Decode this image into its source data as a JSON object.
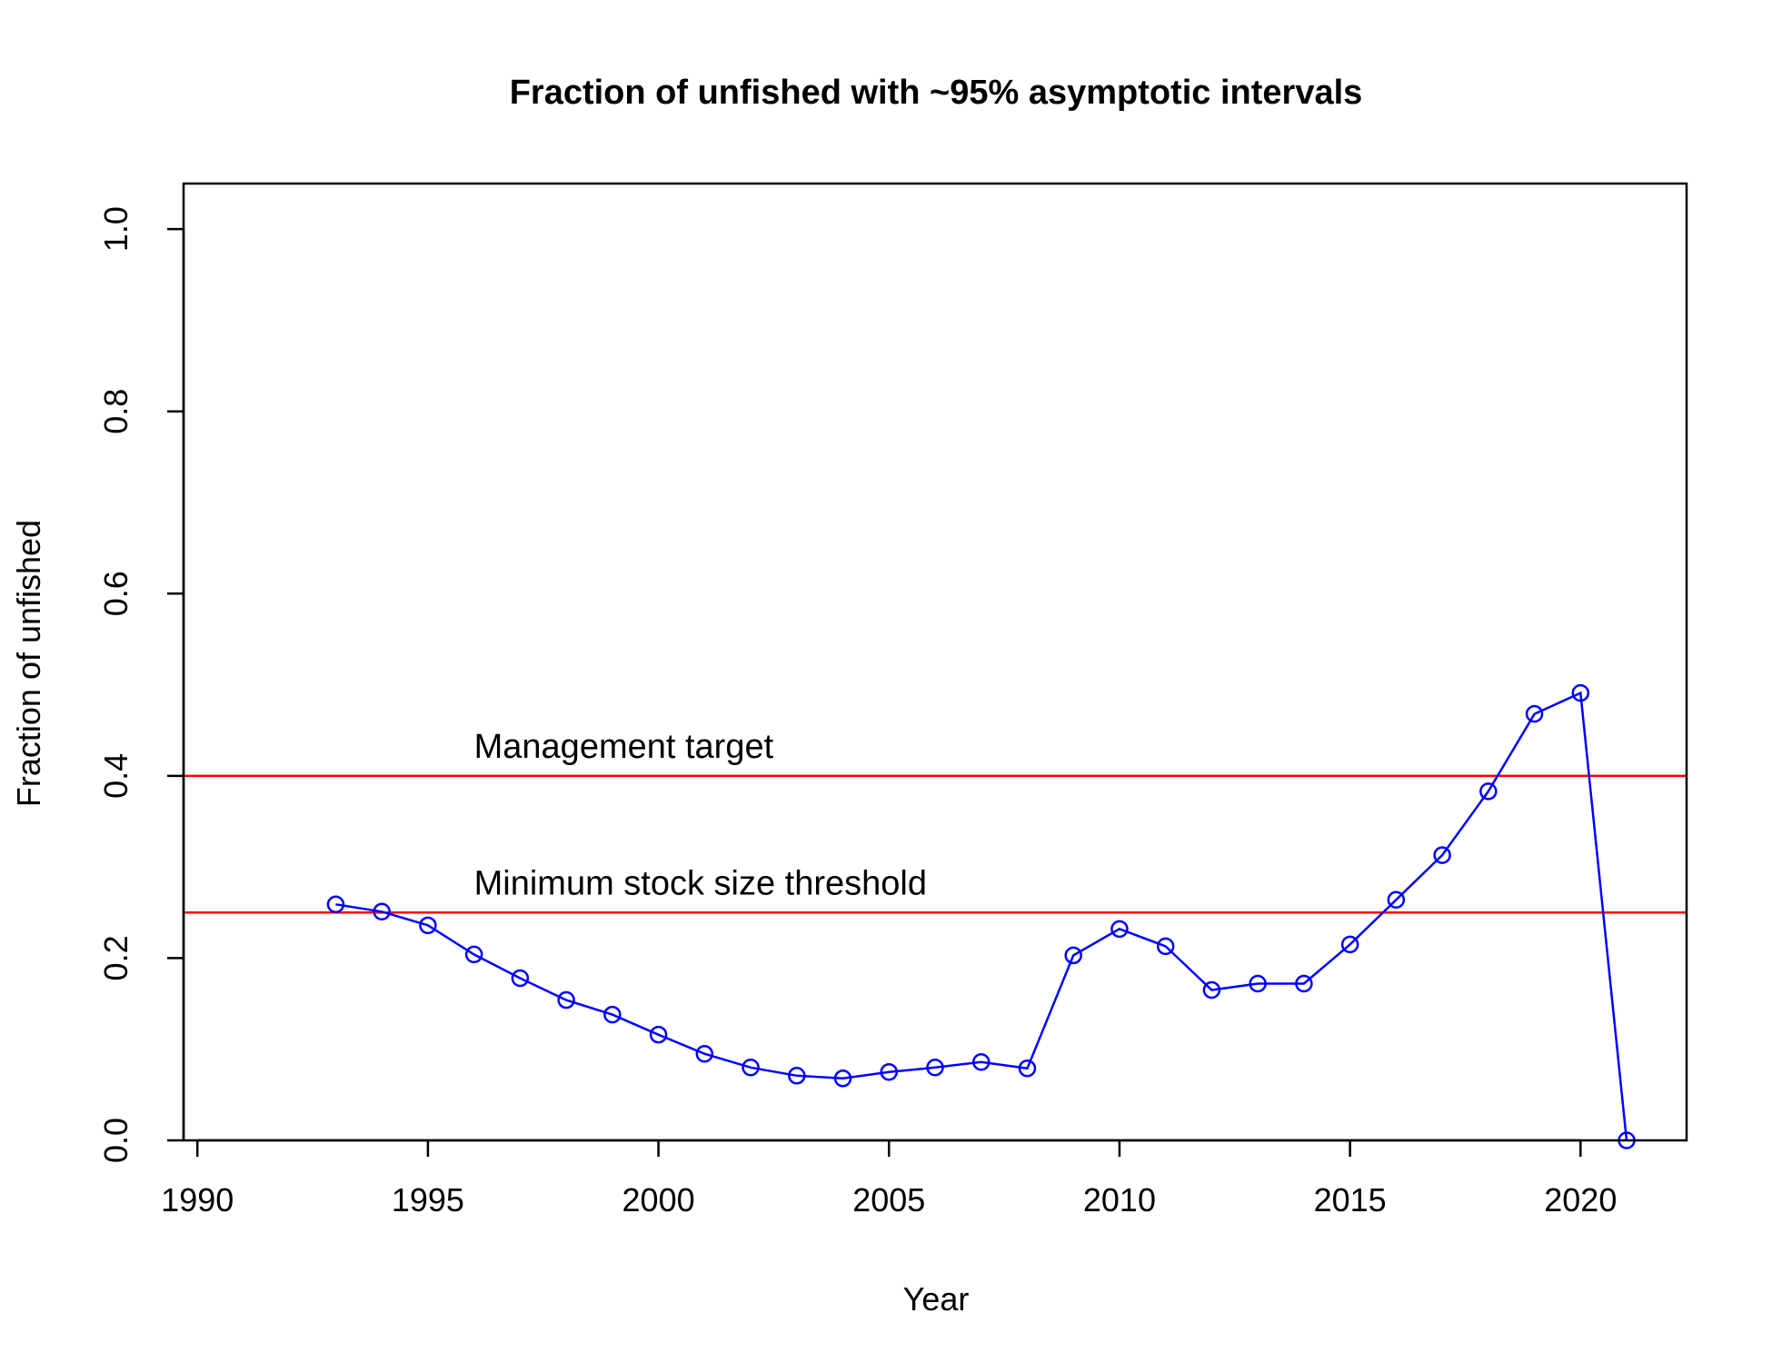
{
  "chart_data": {
    "type": "line",
    "title": "Fraction of unfished with ~95% asymptotic intervals",
    "xlabel": "Year",
    "ylabel": "Fraction of unfished",
    "xlim": [
      1989.7,
      2022.3
    ],
    "ylim": [
      0,
      1.05
    ],
    "xticks": [
      1990,
      1995,
      2000,
      2005,
      2010,
      2015,
      2020
    ],
    "yticks": [
      "0.0",
      "0.2",
      "0.4",
      "0.6",
      "0.8",
      "1.0"
    ],
    "grid": false,
    "colors": {
      "series": "#0000ff",
      "reference": "#ff0000",
      "axis": "#000000"
    },
    "reference_lines": [
      {
        "y": 0.4,
        "label": "Management target",
        "label_x": 1996
      },
      {
        "y": 0.25,
        "label": "Minimum stock size threshold",
        "label_x": 1996
      }
    ],
    "series": [
      {
        "marker": "open-circle",
        "x": [
          1993,
          1994,
          1995,
          1996,
          1997,
          1998,
          1999,
          2000,
          2001,
          2002,
          2003,
          2004,
          2005,
          2006,
          2007,
          2008,
          2009,
          2010,
          2011,
          2012,
          2013,
          2014,
          2015,
          2016,
          2017,
          2018,
          2019,
          2020,
          2021
        ],
        "y": [
          0.259,
          0.251,
          0.236,
          0.204,
          0.178,
          0.154,
          0.138,
          0.116,
          0.095,
          0.08,
          0.071,
          0.068,
          0.075,
          0.08,
          0.086,
          0.079,
          0.203,
          0.232,
          0.213,
          0.165,
          0.172,
          0.172,
          0.215,
          0.264,
          0.313,
          0.383,
          0.468,
          0.491,
          0.0
        ]
      }
    ]
  }
}
